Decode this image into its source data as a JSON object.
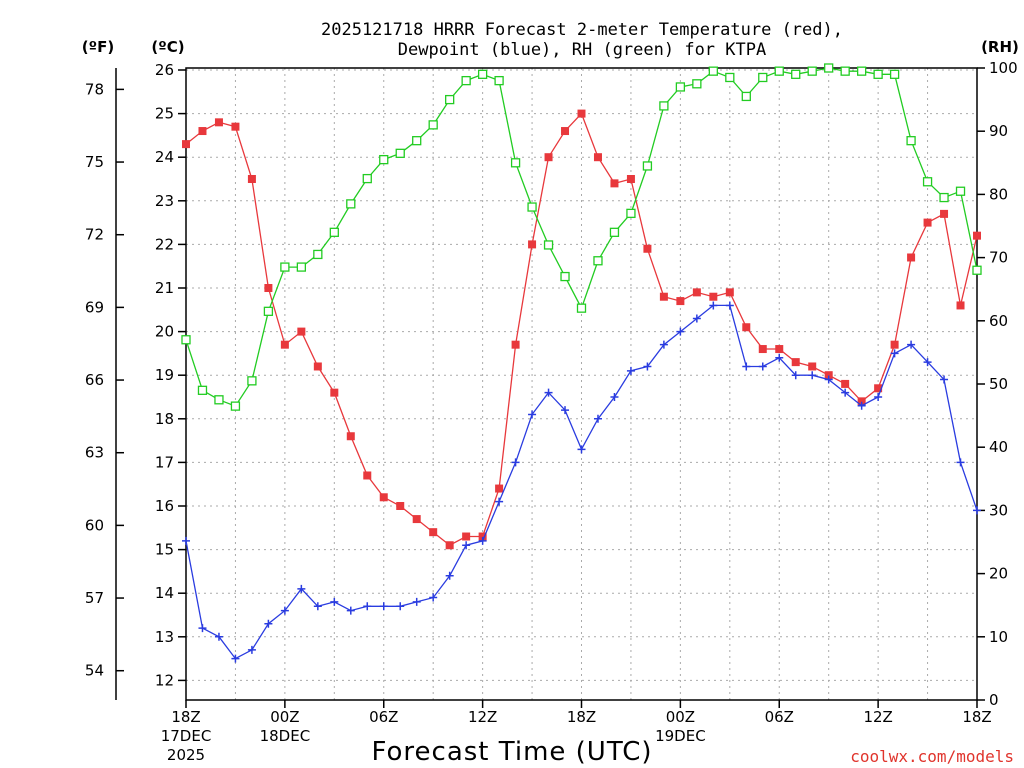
{
  "header": {
    "title_line1": "2025121718 HRRR Forecast 2-meter Temperature (red),",
    "title_line2": "Dewpoint (blue), RH (green) for KTPA",
    "unit_f": "(ºF)",
    "unit_c": "(ºC)",
    "unit_rh": "(RH)"
  },
  "footer": {
    "xlabel": "Forecast Time (UTC)",
    "credit": "coolwx.com/models"
  },
  "chart_data": {
    "type": "line",
    "title": "2025121718 HRRR Forecast 2-meter Temperature (red), Dewpoint (blue), RH (green) for KTPA",
    "xlabel": "Forecast Time (UTC)",
    "x_unit": "forecast hour",
    "xlim": [
      0,
      48
    ],
    "x_ticks": [
      {
        "x": 0,
        "lines": [
          "18Z",
          "17DEC",
          "2025"
        ]
      },
      {
        "x": 6,
        "lines": [
          "00Z",
          "18DEC"
        ]
      },
      {
        "x": 12,
        "lines": [
          "06Z"
        ]
      },
      {
        "x": 18,
        "lines": [
          "12Z"
        ]
      },
      {
        "x": 24,
        "lines": [
          "18Z"
        ]
      },
      {
        "x": 30,
        "lines": [
          "00Z",
          "19DEC"
        ]
      },
      {
        "x": 36,
        "lines": [
          "06Z"
        ]
      },
      {
        "x": 42,
        "lines": [
          "12Z"
        ]
      },
      {
        "x": 48,
        "lines": [
          "18Z"
        ]
      }
    ],
    "ylim_c": [
      11.5,
      26.1
    ],
    "y_ticks_c": [
      "12",
      "13",
      "14",
      "15",
      "16",
      "17",
      "18",
      "19",
      "20",
      "21",
      "22",
      "23",
      "24",
      "25",
      "26"
    ],
    "y_ticks_f": [
      "54",
      "57",
      "60",
      "63",
      "66",
      "69",
      "72",
      "75",
      "78"
    ],
    "ylim_rh": [
      0,
      100
    ],
    "y_ticks_rh": [
      "0",
      "10",
      "20",
      "30",
      "40",
      "50",
      "60",
      "70",
      "80",
      "90",
      "100"
    ],
    "grid": true,
    "series": [
      {
        "name": "Temperature",
        "axis": "c",
        "color": "#e8383c",
        "marker": "filled-square",
        "values": [
          24.3,
          24.6,
          24.8,
          24.7,
          23.5,
          21.0,
          19.7,
          20.0,
          19.2,
          18.6,
          17.6,
          16.7,
          16.2,
          16.0,
          15.7,
          15.4,
          15.1,
          15.3,
          15.3,
          16.4,
          19.7,
          22.0,
          24.0,
          24.6,
          25.0,
          24.0,
          23.4,
          23.5,
          21.9,
          20.8,
          20.7,
          20.9,
          20.8,
          20.9,
          20.1,
          19.6,
          19.6,
          19.3,
          19.2,
          19.0,
          18.8,
          18.4,
          18.7,
          19.7,
          21.7,
          22.5,
          22.7,
          20.6,
          22.2
        ]
      },
      {
        "name": "Dewpoint",
        "axis": "c",
        "color": "#2a3ce0",
        "marker": "plus",
        "values": [
          15.2,
          13.2,
          13.0,
          12.5,
          12.7,
          13.3,
          13.6,
          14.1,
          13.7,
          13.8,
          13.6,
          13.7,
          13.7,
          13.7,
          13.8,
          13.9,
          14.4,
          15.1,
          15.2,
          16.1,
          17.0,
          18.1,
          18.6,
          18.2,
          17.3,
          18.0,
          18.5,
          19.1,
          19.2,
          19.7,
          20.0,
          20.3,
          20.6,
          20.6,
          19.2,
          19.2,
          19.4,
          19.0,
          19.0,
          18.9,
          18.6,
          18.3,
          18.5,
          19.5,
          19.7,
          19.3,
          18.9,
          17.0,
          15.9
        ]
      },
      {
        "name": "RH",
        "axis": "rh",
        "color": "#22cc22",
        "marker": "open-square",
        "values": [
          57,
          49,
          47.5,
          46.5,
          50.5,
          61.5,
          68.5,
          68.5,
          70.5,
          74,
          78.5,
          82.5,
          85.5,
          86.5,
          88.5,
          91,
          95,
          98,
          99,
          98,
          85,
          78,
          72,
          67,
          62,
          69.5,
          74,
          77,
          84.5,
          94,
          97,
          97.5,
          99.5,
          98.5,
          95.5,
          98.5,
          99.5,
          99,
          99.5,
          100,
          99.5,
          99.5,
          99,
          99,
          88.5,
          82,
          79.5,
          80.5,
          68
        ]
      }
    ]
  }
}
